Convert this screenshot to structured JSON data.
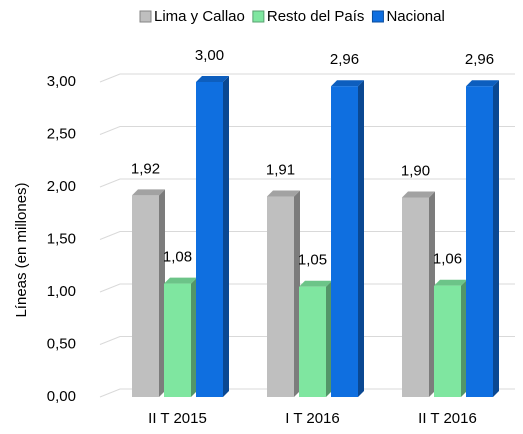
{
  "chart_data": {
    "type": "bar3d",
    "y_axis_label": "Líneas (en millones)",
    "categories": [
      "II T 2015",
      "I T 2016",
      "II T 2016"
    ],
    "series": [
      {
        "name": "Lima y Callao",
        "color": "#bfbfbf",
        "values": [
          1.92,
          1.91,
          1.9
        ],
        "value_labels": [
          "1,92",
          "1,91",
          "1,90"
        ]
      },
      {
        "name": "Resto del País",
        "color": "#7fe6a0",
        "values": [
          1.08,
          1.05,
          1.06
        ],
        "value_labels": [
          "1,08",
          "1,05",
          "1,06"
        ]
      },
      {
        "name": "Nacional",
        "color": "#0f6fe0",
        "values": [
          3.0,
          2.96,
          2.96
        ],
        "value_labels": [
          "3,00",
          "2,96",
          "2,96"
        ]
      }
    ],
    "ylim": [
      0,
      3
    ],
    "yticks": [
      {
        "value": 0,
        "label": "0,00"
      },
      {
        "value": 0.5,
        "label": "0,50"
      },
      {
        "value": 1,
        "label": "1,00"
      },
      {
        "value": 1.5,
        "label": "1,50"
      },
      {
        "value": 2,
        "label": "2,00"
      },
      {
        "value": 2.5,
        "label": "2,50"
      },
      {
        "value": 3,
        "label": "3,00"
      }
    ],
    "grid": true,
    "legend": "top"
  }
}
